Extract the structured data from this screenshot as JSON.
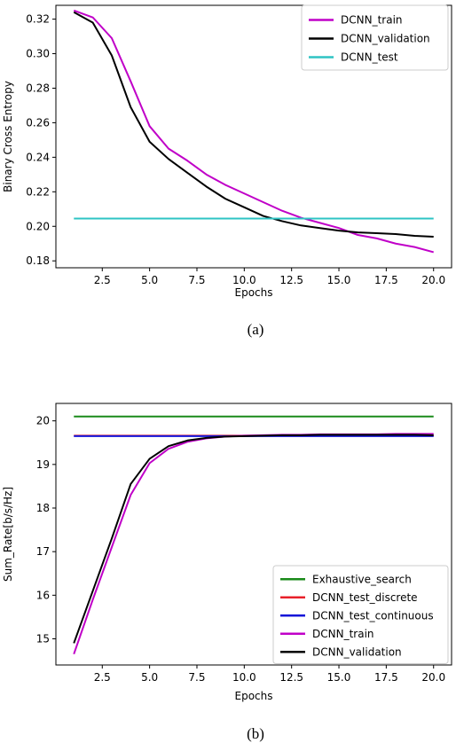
{
  "chart_data": [
    {
      "type": "line",
      "caption": "(a)",
      "xlabel": "Epochs",
      "ylabel": "Binary Cross Entropy",
      "xlim": [
        0.05,
        20.95
      ],
      "ylim": [
        0.176,
        0.328
      ],
      "xticks": [
        "2.5",
        "5.0",
        "7.5",
        "10.0",
        "12.5",
        "15.0",
        "17.5",
        "20.0"
      ],
      "yticks": [
        "0.18",
        "0.20",
        "0.22",
        "0.24",
        "0.26",
        "0.28",
        "0.30",
        "0.32"
      ],
      "grid": false,
      "legend_position": "top-right",
      "x": [
        1,
        2,
        3,
        4,
        5,
        6,
        7,
        8,
        9,
        10,
        11,
        12,
        13,
        14,
        15,
        16,
        17,
        18,
        19,
        20
      ],
      "series": [
        {
          "name": "DCNN_train",
          "color": "#c000c8",
          "values": [
            0.325,
            0.321,
            0.309,
            0.284,
            0.258,
            0.245,
            0.238,
            0.23,
            0.224,
            0.219,
            0.214,
            0.209,
            0.205,
            0.202,
            0.199,
            0.195,
            0.193,
            0.19,
            0.188,
            0.185
          ]
        },
        {
          "name": "DCNN_validation",
          "color": "#000000",
          "values": [
            0.324,
            0.318,
            0.299,
            0.269,
            0.249,
            0.239,
            0.231,
            0.223,
            0.216,
            0.211,
            0.206,
            0.203,
            0.2005,
            0.199,
            0.1975,
            0.1965,
            0.196,
            0.1955,
            0.1945,
            0.194
          ]
        },
        {
          "name": "DCNN_test",
          "color": "#2ec4c4",
          "values": [
            0.2045,
            0.2045,
            0.2045,
            0.2045,
            0.2045,
            0.2045,
            0.2045,
            0.2045,
            0.2045,
            0.2045,
            0.2045,
            0.2045,
            0.2045,
            0.2045,
            0.2045,
            0.2045,
            0.2045,
            0.2045,
            0.2045,
            0.2045
          ]
        }
      ]
    },
    {
      "type": "line",
      "caption": "(b)",
      "xlabel": "Epochs",
      "ylabel": "Sum_Rate[b/s/Hz]",
      "xlim": [
        0.05,
        20.95
      ],
      "ylim": [
        14.4,
        20.4
      ],
      "xticks": [
        "2.5",
        "5.0",
        "7.5",
        "10.0",
        "12.5",
        "15.0",
        "17.5",
        "20.0"
      ],
      "yticks": [
        "15",
        "16",
        "17",
        "18",
        "19",
        "20"
      ],
      "grid": false,
      "legend_position": "bottom-right",
      "x": [
        1,
        2,
        3,
        4,
        5,
        6,
        7,
        8,
        9,
        10,
        11,
        12,
        13,
        14,
        15,
        16,
        17,
        18,
        19,
        20
      ],
      "series": [
        {
          "name": "Exhaustive_search",
          "color": "#1a8a1a",
          "values": [
            20.1,
            20.1,
            20.1,
            20.1,
            20.1,
            20.1,
            20.1,
            20.1,
            20.1,
            20.1,
            20.1,
            20.1,
            20.1,
            20.1,
            20.1,
            20.1,
            20.1,
            20.1,
            20.1,
            20.1
          ]
        },
        {
          "name": "DCNN_test_discrete",
          "color": "#e8202a",
          "values": [
            19.66,
            19.66,
            19.66,
            19.66,
            19.66,
            19.66,
            19.66,
            19.66,
            19.66,
            19.66,
            19.66,
            19.66,
            19.66,
            19.66,
            19.66,
            19.66,
            19.66,
            19.66,
            19.66,
            19.66
          ]
        },
        {
          "name": "DCNN_test_continuous",
          "color": "#1515d8",
          "values": [
            19.65,
            19.65,
            19.65,
            19.65,
            19.65,
            19.65,
            19.65,
            19.65,
            19.65,
            19.65,
            19.65,
            19.65,
            19.65,
            19.65,
            19.65,
            19.65,
            19.65,
            19.65,
            19.65,
            19.65
          ]
        },
        {
          "name": "DCNN_train",
          "color": "#c000c8",
          "values": [
            14.65,
            15.9,
            17.1,
            18.3,
            19.03,
            19.36,
            19.52,
            19.6,
            19.64,
            19.66,
            19.67,
            19.68,
            19.68,
            19.69,
            19.69,
            19.69,
            19.69,
            19.7,
            19.7,
            19.7
          ]
        },
        {
          "name": "DCNN_validation",
          "color": "#000000",
          "values": [
            14.9,
            16.1,
            17.3,
            18.55,
            19.13,
            19.42,
            19.55,
            19.61,
            19.64,
            19.65,
            19.66,
            19.67,
            19.67,
            19.68,
            19.68,
            19.68,
            19.68,
            19.68,
            19.68,
            19.67
          ]
        }
      ]
    }
  ]
}
